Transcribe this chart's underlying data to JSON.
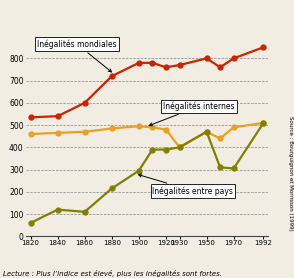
{
  "years": [
    1820,
    1840,
    1860,
    1880,
    1900,
    1910,
    1920,
    1930,
    1950,
    1960,
    1970,
    1992
  ],
  "mondiales": [
    535,
    540,
    600,
    720,
    780,
    780,
    760,
    770,
    800,
    760,
    800,
    850
  ],
  "internes": [
    460,
    465,
    470,
    485,
    495,
    490,
    480,
    400,
    470,
    440,
    490,
    510
  ],
  "entre_pays": [
    60,
    120,
    110,
    215,
    295,
    390,
    390,
    400,
    470,
    310,
    305,
    510
  ],
  "color_mondiales": "#cc2200",
  "color_internes": "#e8a020",
  "color_entre_pays": "#808000",
  "ylim": [
    0,
    900
  ],
  "yticks": [
    0,
    100,
    200,
    300,
    400,
    500,
    600,
    700,
    800
  ],
  "xticks": [
    1820,
    1840,
    1860,
    1880,
    1900,
    1920,
    1930,
    1950,
    1970,
    1992
  ],
  "source_text": "Source : Bourguignon et Morrisson (1999)",
  "lecture_text": "Lecture : Plus l’indice est élevé, plus les inégalités sont fortes.",
  "label_mondiales": "Inégalités mondiales",
  "label_internes": "Inégalités internes",
  "label_entre_pays": "Inégalités entre pays",
  "background_color": "#f2ede3",
  "figsize": [
    2.94,
    2.78
  ],
  "dpi": 100
}
